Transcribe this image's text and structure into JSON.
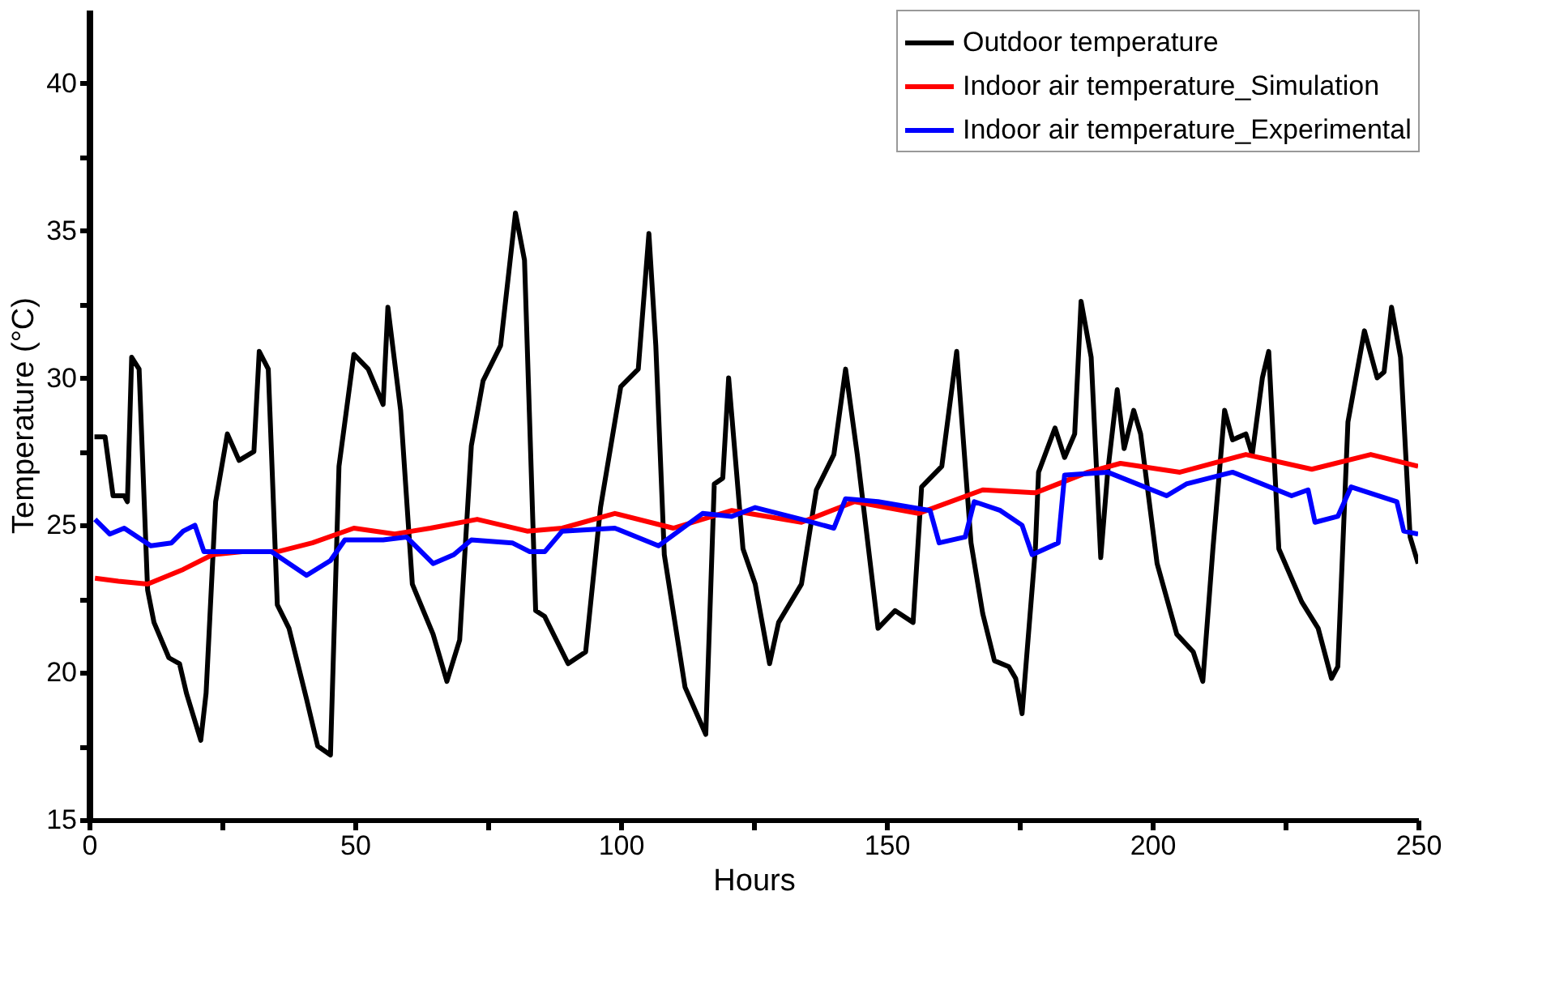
{
  "chart_data": {
    "type": "line",
    "xlabel": "Hours",
    "ylabel": "Temperature (°C)",
    "xlim": [
      0,
      250
    ],
    "ylim": [
      15,
      42.5
    ],
    "xticks": [
      0,
      {
        "value": 25,
        "label": null
      },
      50,
      {
        "value": 75,
        "label": null
      },
      100,
      {
        "value": 125,
        "label": null
      },
      150,
      {
        "value": 175,
        "label": null
      },
      200,
      {
        "value": 225,
        "label": null
      },
      250
    ],
    "yticks": [
      15,
      {
        "value": 17.5,
        "label": null
      },
      20,
      {
        "value": 22.5,
        "label": null
      },
      25,
      {
        "value": 27.5,
        "label": null
      },
      30,
      {
        "value": 32.5,
        "label": null
      },
      35,
      {
        "value": 37.5,
        "label": null
      },
      40
    ],
    "grid": false,
    "legend": "top right",
    "marker": "none",
    "line_style": "solid",
    "series": [
      {
        "name": "Outdoor temperature",
        "color": "#000000",
        "x": [
          1,
          3,
          4.5,
          6.6,
          7.2,
          8,
          9.4,
          11,
          12.2,
          15,
          17,
          18.3,
          21,
          22,
          23.8,
          26,
          28.2,
          31,
          32,
          33.7,
          35.4,
          37.6,
          40.9,
          43,
          45.4,
          47,
          49.8,
          52.5,
          55.3,
          56.2,
          58.6,
          60.8,
          64.7,
          67.3,
          69.7,
          71.9,
          74.1,
          77.4,
          80.2,
          81.9,
          84,
          85.7,
          90.1,
          93.4,
          96.2,
          100,
          103.3,
          105.3,
          106.6,
          108.2,
          112.1,
          116,
          117.6,
          119.2,
          120.3,
          123,
          125.3,
          128,
          129.7,
          134,
          136.8,
          140.1,
          142.3,
          144.5,
          148.4,
          151.6,
          155,
          156.6,
          160.4,
          163.2,
          165.9,
          168.1,
          170.3,
          173,
          174.3,
          175.5,
          178,
          178.6,
          181.7,
          183.5,
          185.4,
          186.6,
          188.5,
          190.3,
          191.6,
          193.4,
          194.7,
          196.5,
          197.8,
          200.9,
          204.6,
          207.7,
          209.5,
          211.4,
          213.6,
          215.1,
          217.6,
          218.8,
          220.7,
          221.9,
          223.8,
          228.1,
          231.2,
          233.7,
          234.9,
          236.8,
          239.9,
          242.3,
          243.6,
          245,
          246.7,
          248.5,
          250
        ],
        "values": [
          28.0,
          28.0,
          26.0,
          26.0,
          25.8,
          30.7,
          30.3,
          22.8,
          21.7,
          20.5,
          20.3,
          19.3,
          17.7,
          19.3,
          25.8,
          28.1,
          27.2,
          27.5,
          30.9,
          30.3,
          22.3,
          21.5,
          19.1,
          17.5,
          17.2,
          27.0,
          30.8,
          30.3,
          29.1,
          32.4,
          28.9,
          23.0,
          21.3,
          19.7,
          21.1,
          27.7,
          29.9,
          31.1,
          35.6,
          34.0,
          22.1,
          21.9,
          20.3,
          20.7,
          25.6,
          29.7,
          30.3,
          34.9,
          31.1,
          24.0,
          19.5,
          17.9,
          26.4,
          26.6,
          30.0,
          24.2,
          23.0,
          20.3,
          21.7,
          23.0,
          26.2,
          27.4,
          30.3,
          27.4,
          21.5,
          22.1,
          21.7,
          26.3,
          27.0,
          30.9,
          24.4,
          22.0,
          20.4,
          20.2,
          19.8,
          18.6,
          24.2,
          26.8,
          28.3,
          27.3,
          28.1,
          32.6,
          30.7,
          23.9,
          26.8,
          29.6,
          27.6,
          28.9,
          28.1,
          23.7,
          21.3,
          20.7,
          19.7,
          24.2,
          28.9,
          27.9,
          28.1,
          27.4,
          30.0,
          30.9,
          24.2,
          22.4,
          21.5,
          19.8,
          20.2,
          28.5,
          31.6,
          30.0,
          30.2,
          32.4,
          30.7,
          24.6,
          23.7
        ]
      },
      {
        "name": "Indoor air temperature_Simulation",
        "color": "#ff0000",
        "x": [
          1.1,
          5.5,
          11,
          17.7,
          23.2,
          28.8,
          35.4,
          42,
          49.8,
          57.5,
          64.2,
          73,
          82.4,
          89,
          98.9,
          109.9,
          120.9,
          134,
          144,
          156,
          168.1,
          178,
          187.9,
          194,
          205.2,
          217.6,
          230,
          241.1,
          250
        ],
        "values": [
          23.2,
          23.1,
          23.0,
          23.5,
          24.0,
          24.1,
          24.1,
          24.4,
          24.9,
          24.7,
          24.9,
          25.2,
          24.8,
          24.9,
          25.4,
          24.9,
          25.5,
          25.1,
          25.8,
          25.4,
          26.2,
          26.1,
          26.8,
          27.1,
          26.8,
          27.4,
          26.9,
          27.4,
          27.0
        ]
      },
      {
        "name": "Indoor air temperature_Experimental",
        "color": "#0000ff",
        "x": [
          1.1,
          3.9,
          6.6,
          11.6,
          15.5,
          17.7,
          19.9,
          21.6,
          28.8,
          34.3,
          40.9,
          45.4,
          48.1,
          55.3,
          59.7,
          64.7,
          68.6,
          71.9,
          79.6,
          82.9,
          85.7,
          89,
          98.9,
          107.1,
          115.4,
          120.9,
          125.3,
          134,
          140.1,
          142.3,
          148.4,
          158.2,
          159.9,
          164.8,
          166.5,
          171.4,
          175.5,
          177.4,
          182.3,
          183.5,
          191.6,
          202.7,
          206.4,
          215.1,
          226.2,
          229.3,
          230.6,
          234.9,
          237.4,
          246,
          247.3,
          250
        ],
        "values": [
          25.2,
          24.7,
          24.9,
          24.3,
          24.4,
          24.8,
          25.0,
          24.1,
          24.1,
          24.1,
          23.3,
          23.8,
          24.5,
          24.5,
          24.6,
          23.7,
          24.0,
          24.5,
          24.4,
          24.1,
          24.1,
          24.8,
          24.9,
          24.3,
          25.4,
          25.3,
          25.6,
          25.2,
          24.9,
          25.9,
          25.8,
          25.5,
          24.4,
          24.6,
          25.8,
          25.5,
          25.0,
          24.0,
          24.4,
          26.7,
          26.8,
          26.0,
          26.4,
          26.8,
          26.0,
          26.2,
          25.1,
          25.3,
          26.3,
          25.8,
          24.8,
          24.7
        ]
      }
    ]
  }
}
